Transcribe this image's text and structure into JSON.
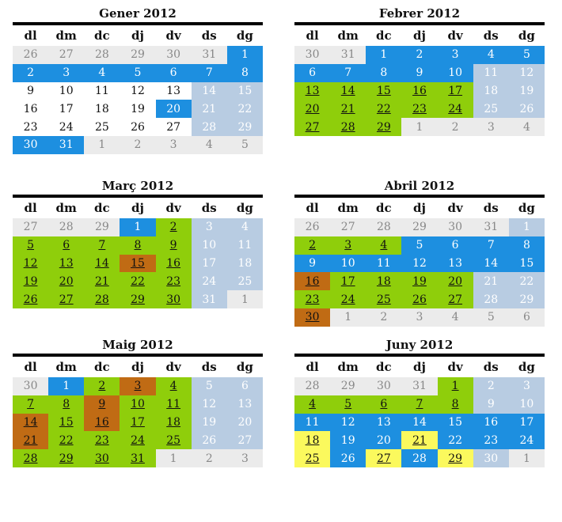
{
  "weekdays": [
    "dl",
    "dm",
    "dc",
    "dj",
    "dv",
    "ds",
    "dg"
  ],
  "colors": {
    "other": "#ebebeb",
    "blue": "#1d8fe0",
    "weekend": "#b8cce2",
    "green": "#8fce0b",
    "brown": "#c06b14",
    "yellow": "#fbf95d"
  },
  "months": [
    {
      "title": "Gener 2012",
      "weeks": [
        [
          [
            "26",
            "o"
          ],
          [
            "27",
            "o"
          ],
          [
            "28",
            "o"
          ],
          [
            "29",
            "o"
          ],
          [
            "30",
            "o"
          ],
          [
            "31",
            "o"
          ],
          [
            "1",
            "b"
          ]
        ],
        [
          [
            "2",
            "b"
          ],
          [
            "3",
            "b"
          ],
          [
            "4",
            "b"
          ],
          [
            "5",
            "b"
          ],
          [
            "6",
            "b"
          ],
          [
            "7",
            "b"
          ],
          [
            "8",
            "b"
          ]
        ],
        [
          [
            "9",
            "w"
          ],
          [
            "10",
            "w"
          ],
          [
            "11",
            "w"
          ],
          [
            "12",
            "w"
          ],
          [
            "13",
            "w"
          ],
          [
            "14",
            "e"
          ],
          [
            "15",
            "e"
          ]
        ],
        [
          [
            "16",
            "w"
          ],
          [
            "17",
            "w"
          ],
          [
            "18",
            "w"
          ],
          [
            "19",
            "w"
          ],
          [
            "20",
            "b"
          ],
          [
            "21",
            "e"
          ],
          [
            "22",
            "e"
          ]
        ],
        [
          [
            "23",
            "w"
          ],
          [
            "24",
            "w"
          ],
          [
            "25",
            "w"
          ],
          [
            "26",
            "w"
          ],
          [
            "27",
            "w"
          ],
          [
            "28",
            "e"
          ],
          [
            "29",
            "e"
          ]
        ],
        [
          [
            "30",
            "b"
          ],
          [
            "31",
            "b"
          ],
          [
            "1",
            "o"
          ],
          [
            "2",
            "o"
          ],
          [
            "3",
            "o"
          ],
          [
            "4",
            "o"
          ],
          [
            "5",
            "o"
          ]
        ]
      ]
    },
    {
      "title": "Febrer 2012",
      "weeks": [
        [
          [
            "30",
            "o"
          ],
          [
            "31",
            "o"
          ],
          [
            "1",
            "b"
          ],
          [
            "2",
            "b"
          ],
          [
            "3",
            "b"
          ],
          [
            "4",
            "b"
          ],
          [
            "5",
            "b"
          ]
        ],
        [
          [
            "6",
            "b"
          ],
          [
            "7",
            "b"
          ],
          [
            "8",
            "b"
          ],
          [
            "9",
            "b"
          ],
          [
            "10",
            "b"
          ],
          [
            "11",
            "e"
          ],
          [
            "12",
            "e"
          ]
        ],
        [
          [
            "13",
            "g"
          ],
          [
            "14",
            "g"
          ],
          [
            "15",
            "g"
          ],
          [
            "16",
            "g"
          ],
          [
            "17",
            "g"
          ],
          [
            "18",
            "e"
          ],
          [
            "19",
            "e"
          ]
        ],
        [
          [
            "20",
            "g"
          ],
          [
            "21",
            "g"
          ],
          [
            "22",
            "g"
          ],
          [
            "23",
            "g"
          ],
          [
            "24",
            "g"
          ],
          [
            "25",
            "e"
          ],
          [
            "26",
            "e"
          ]
        ],
        [
          [
            "27",
            "g"
          ],
          [
            "28",
            "g"
          ],
          [
            "29",
            "g"
          ],
          [
            "1",
            "o"
          ],
          [
            "2",
            "o"
          ],
          [
            "3",
            "o"
          ],
          [
            "4",
            "o"
          ]
        ]
      ]
    },
    {
      "title": "Març 2012",
      "weeks": [
        [
          [
            "27",
            "o"
          ],
          [
            "28",
            "o"
          ],
          [
            "29",
            "o"
          ],
          [
            "1",
            "b"
          ],
          [
            "2",
            "g"
          ],
          [
            "3",
            "e"
          ],
          [
            "4",
            "e"
          ]
        ],
        [
          [
            "5",
            "g"
          ],
          [
            "6",
            "g"
          ],
          [
            "7",
            "g"
          ],
          [
            "8",
            "g"
          ],
          [
            "9",
            "g"
          ],
          [
            "10",
            "e"
          ],
          [
            "11",
            "e"
          ]
        ],
        [
          [
            "12",
            "g"
          ],
          [
            "13",
            "g"
          ],
          [
            "14",
            "g"
          ],
          [
            "15",
            "r"
          ],
          [
            "16",
            "g"
          ],
          [
            "17",
            "e"
          ],
          [
            "18",
            "e"
          ]
        ],
        [
          [
            "19",
            "g"
          ],
          [
            "20",
            "g"
          ],
          [
            "21",
            "g"
          ],
          [
            "22",
            "g"
          ],
          [
            "23",
            "g"
          ],
          [
            "24",
            "e"
          ],
          [
            "25",
            "e"
          ]
        ],
        [
          [
            "26",
            "g"
          ],
          [
            "27",
            "g"
          ],
          [
            "28",
            "g"
          ],
          [
            "29",
            "g"
          ],
          [
            "30",
            "g"
          ],
          [
            "31",
            "e"
          ],
          [
            "1",
            "o"
          ]
        ]
      ]
    },
    {
      "title": "Abril 2012",
      "weeks": [
        [
          [
            "26",
            "o"
          ],
          [
            "27",
            "o"
          ],
          [
            "28",
            "o"
          ],
          [
            "29",
            "o"
          ],
          [
            "30",
            "o"
          ],
          [
            "31",
            "o"
          ],
          [
            "1",
            "e"
          ]
        ],
        [
          [
            "2",
            "g"
          ],
          [
            "3",
            "g"
          ],
          [
            "4",
            "g"
          ],
          [
            "5",
            "b"
          ],
          [
            "6",
            "b"
          ],
          [
            "7",
            "b"
          ],
          [
            "8",
            "b"
          ]
        ],
        [
          [
            "9",
            "b"
          ],
          [
            "10",
            "b"
          ],
          [
            "11",
            "b"
          ],
          [
            "12",
            "b"
          ],
          [
            "13",
            "b"
          ],
          [
            "14",
            "b"
          ],
          [
            "15",
            "b"
          ]
        ],
        [
          [
            "16",
            "r"
          ],
          [
            "17",
            "g"
          ],
          [
            "18",
            "g"
          ],
          [
            "19",
            "g"
          ],
          [
            "20",
            "g"
          ],
          [
            "21",
            "e"
          ],
          [
            "22",
            "e"
          ]
        ],
        [
          [
            "23",
            "g"
          ],
          [
            "24",
            "g"
          ],
          [
            "25",
            "g"
          ],
          [
            "26",
            "g"
          ],
          [
            "27",
            "g"
          ],
          [
            "28",
            "e"
          ],
          [
            "29",
            "e"
          ]
        ],
        [
          [
            "30",
            "r"
          ],
          [
            "1",
            "o"
          ],
          [
            "2",
            "o"
          ],
          [
            "3",
            "o"
          ],
          [
            "4",
            "o"
          ],
          [
            "5",
            "o"
          ],
          [
            "6",
            "o"
          ]
        ]
      ]
    },
    {
      "title": "Maig 2012",
      "weeks": [
        [
          [
            "30",
            "o"
          ],
          [
            "1",
            "b"
          ],
          [
            "2",
            "g"
          ],
          [
            "3",
            "r"
          ],
          [
            "4",
            "g"
          ],
          [
            "5",
            "e"
          ],
          [
            "6",
            "e"
          ]
        ],
        [
          [
            "7",
            "g"
          ],
          [
            "8",
            "g"
          ],
          [
            "9",
            "r"
          ],
          [
            "10",
            "g"
          ],
          [
            "11",
            "g"
          ],
          [
            "12",
            "e"
          ],
          [
            "13",
            "e"
          ]
        ],
        [
          [
            "14",
            "r"
          ],
          [
            "15",
            "g"
          ],
          [
            "16",
            "r"
          ],
          [
            "17",
            "g"
          ],
          [
            "18",
            "g"
          ],
          [
            "19",
            "e"
          ],
          [
            "20",
            "e"
          ]
        ],
        [
          [
            "21",
            "r"
          ],
          [
            "22",
            "g"
          ],
          [
            "23",
            "g"
          ],
          [
            "24",
            "g"
          ],
          [
            "25",
            "g"
          ],
          [
            "26",
            "e"
          ],
          [
            "27",
            "e"
          ]
        ],
        [
          [
            "28",
            "g"
          ],
          [
            "29",
            "g"
          ],
          [
            "30",
            "g"
          ],
          [
            "31",
            "g"
          ],
          [
            "1",
            "o"
          ],
          [
            "2",
            "o"
          ],
          [
            "3",
            "o"
          ]
        ]
      ]
    },
    {
      "title": "Juny 2012",
      "weeks": [
        [
          [
            "28",
            "o"
          ],
          [
            "29",
            "o"
          ],
          [
            "30",
            "o"
          ],
          [
            "31",
            "o"
          ],
          [
            "1",
            "g"
          ],
          [
            "2",
            "e"
          ],
          [
            "3",
            "e"
          ]
        ],
        [
          [
            "4",
            "g"
          ],
          [
            "5",
            "g"
          ],
          [
            "6",
            "g"
          ],
          [
            "7",
            "g"
          ],
          [
            "8",
            "g"
          ],
          [
            "9",
            "e"
          ],
          [
            "10",
            "e"
          ]
        ],
        [
          [
            "11",
            "b"
          ],
          [
            "12",
            "b"
          ],
          [
            "13",
            "b"
          ],
          [
            "14",
            "b"
          ],
          [
            "15",
            "b"
          ],
          [
            "16",
            "b"
          ],
          [
            "17",
            "b"
          ]
        ],
        [
          [
            "18",
            "y"
          ],
          [
            "19",
            "b"
          ],
          [
            "20",
            "b"
          ],
          [
            "21",
            "y"
          ],
          [
            "22",
            "b"
          ],
          [
            "23",
            "b"
          ],
          [
            "24",
            "b"
          ]
        ],
        [
          [
            "25",
            "y"
          ],
          [
            "26",
            "b"
          ],
          [
            "27",
            "y"
          ],
          [
            "28",
            "b"
          ],
          [
            "29",
            "y"
          ],
          [
            "30",
            "e"
          ],
          [
            "1",
            "o"
          ]
        ]
      ]
    }
  ]
}
